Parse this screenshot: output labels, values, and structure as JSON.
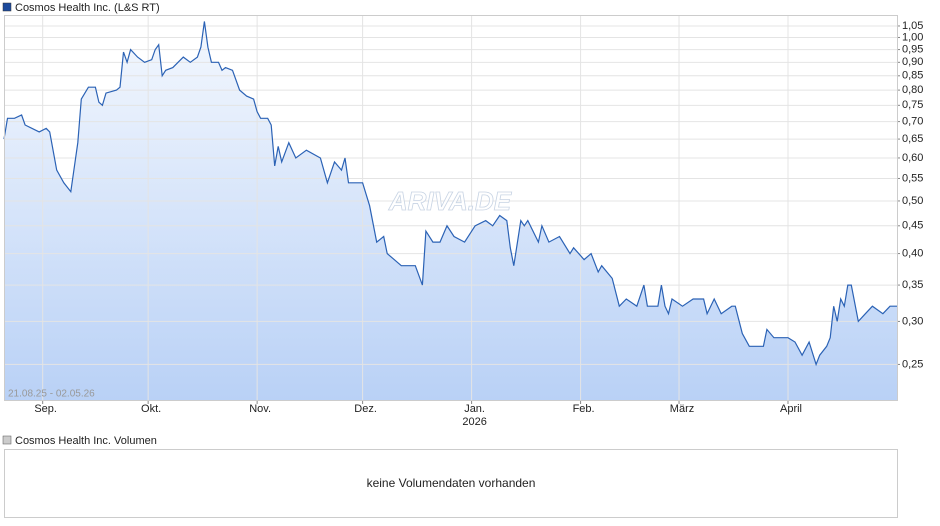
{
  "chart_data": {
    "type": "line",
    "range_label": "21.08.25 - 02.05.26",
    "watermark": "ARIVA.DE",
    "log_scale": true,
    "grid": true,
    "y_axis_side": "right",
    "xlim": [
      "2025-08-21",
      "2026-05-02"
    ],
    "xticks": [
      {
        "value": "2025-09-01",
        "label": "Sep."
      },
      {
        "value": "2025-10-01",
        "label": "Okt."
      },
      {
        "value": "2025-11-01",
        "label": "Nov."
      },
      {
        "value": "2025-12-01",
        "label": "Dez."
      },
      {
        "value": "2026-01-01",
        "label": "Jan."
      },
      {
        "value": "2026-02-01",
        "label": "Feb."
      },
      {
        "value": "2026-03-01",
        "label": "März"
      },
      {
        "value": "2026-04-01",
        "label": "April"
      }
    ],
    "year_label": {
      "value": "2026-01-01",
      "label": "2026"
    },
    "ylim": [
      0.215,
      1.1
    ],
    "yticks": [
      {
        "value": 0.25,
        "label": "0,25"
      },
      {
        "value": 0.3,
        "label": "0,30"
      },
      {
        "value": 0.35,
        "label": "0,35"
      },
      {
        "value": 0.4,
        "label": "0,40"
      },
      {
        "value": 0.45,
        "label": "0,45"
      },
      {
        "value": 0.5,
        "label": "0,50"
      },
      {
        "value": 0.55,
        "label": "0,55"
      },
      {
        "value": 0.6,
        "label": "0,60"
      },
      {
        "value": 0.65,
        "label": "0,65"
      },
      {
        "value": 0.7,
        "label": "0,70"
      },
      {
        "value": 0.75,
        "label": "0,75"
      },
      {
        "value": 0.8,
        "label": "0,80"
      },
      {
        "value": 0.85,
        "label": "0,85"
      },
      {
        "value": 0.9,
        "label": "0,90"
      },
      {
        "value": 0.95,
        "label": "0,95"
      },
      {
        "value": 1.0,
        "label": "1,00"
      },
      {
        "value": 1.05,
        "label": "1,05"
      }
    ],
    "x": [
      "2025-08-21",
      "2025-08-22",
      "2025-08-24",
      "2025-08-26",
      "2025-08-27",
      "2025-08-31",
      "2025-09-02",
      "2025-09-03",
      "2025-09-05",
      "2025-09-07",
      "2025-09-09",
      "2025-09-11",
      "2025-09-12",
      "2025-09-14",
      "2025-09-16",
      "2025-09-17",
      "2025-09-18",
      "2025-09-19",
      "2025-09-22",
      "2025-09-23",
      "2025-09-24",
      "2025-09-25",
      "2025-09-26",
      "2025-09-28",
      "2025-09-30",
      "2025-10-02",
      "2025-10-03",
      "2025-10-04",
      "2025-10-05",
      "2025-10-06",
      "2025-10-08",
      "2025-10-11",
      "2025-10-13",
      "2025-10-15",
      "2025-10-16",
      "2025-10-17",
      "2025-10-18",
      "2025-10-19",
      "2025-10-21",
      "2025-10-22",
      "2025-10-23",
      "2025-10-25",
      "2025-10-27",
      "2025-10-29",
      "2025-10-31",
      "2025-11-01",
      "2025-11-02",
      "2025-11-04",
      "2025-11-05",
      "2025-11-06",
      "2025-11-07",
      "2025-11-08",
      "2025-11-10",
      "2025-11-12",
      "2025-11-15",
      "2025-11-19",
      "2025-11-21",
      "2025-11-23",
      "2025-11-25",
      "2025-11-26",
      "2025-11-27",
      "2025-12-01",
      "2025-12-03",
      "2025-12-05",
      "2025-12-07",
      "2025-12-08",
      "2025-12-10",
      "2025-12-12",
      "2025-12-16",
      "2025-12-18",
      "2025-12-19",
      "2025-12-21",
      "2025-12-23",
      "2025-12-25",
      "2025-12-27",
      "2025-12-30",
      "2026-01-02",
      "2026-01-05",
      "2026-01-07",
      "2026-01-09",
      "2026-01-11",
      "2026-01-12",
      "2026-01-13",
      "2026-01-15",
      "2026-01-16",
      "2026-01-17",
      "2026-01-20",
      "2026-01-21",
      "2026-01-23",
      "2026-01-26",
      "2026-01-29",
      "2026-01-30",
      "2026-02-02",
      "2026-02-04",
      "2026-02-06",
      "2026-02-07",
      "2026-02-10",
      "2026-02-12",
      "2026-02-14",
      "2026-02-17",
      "2026-02-19",
      "2026-02-20",
      "2026-02-23",
      "2026-02-24",
      "2026-02-25",
      "2026-02-26",
      "2026-02-27",
      "2026-03-02",
      "2026-03-05",
      "2026-03-08",
      "2026-03-09",
      "2026-03-11",
      "2026-03-13",
      "2026-03-16",
      "2026-03-17",
      "2026-03-19",
      "2026-03-21",
      "2026-03-23",
      "2026-03-25",
      "2026-03-26",
      "2026-03-28",
      "2026-04-01",
      "2026-04-03",
      "2026-04-05",
      "2026-04-07",
      "2026-04-09",
      "2026-04-10",
      "2026-04-12",
      "2026-04-13",
      "2026-04-14",
      "2026-04-15",
      "2026-04-16",
      "2026-04-17",
      "2026-04-18",
      "2026-04-19",
      "2026-04-21",
      "2026-04-23",
      "2026-04-25",
      "2026-04-28",
      "2026-04-30",
      "2026-05-02"
    ],
    "series": [
      {
        "name": "Cosmos Health Inc. (L&S RT)",
        "color": "#2b62b5",
        "values": [
          0.65,
          0.71,
          0.71,
          0.72,
          0.69,
          0.67,
          0.68,
          0.67,
          0.57,
          0.54,
          0.52,
          0.64,
          0.77,
          0.81,
          0.81,
          0.76,
          0.75,
          0.79,
          0.8,
          0.81,
          0.94,
          0.9,
          0.95,
          0.92,
          0.9,
          0.91,
          0.95,
          0.97,
          0.85,
          0.87,
          0.88,
          0.92,
          0.9,
          0.92,
          0.96,
          1.07,
          0.96,
          0.9,
          0.9,
          0.87,
          0.88,
          0.87,
          0.8,
          0.78,
          0.77,
          0.73,
          0.71,
          0.71,
          0.69,
          0.58,
          0.63,
          0.59,
          0.64,
          0.6,
          0.62,
          0.6,
          0.54,
          0.59,
          0.57,
          0.6,
          0.54,
          0.54,
          0.49,
          0.42,
          0.43,
          0.4,
          0.39,
          0.38,
          0.38,
          0.35,
          0.44,
          0.42,
          0.42,
          0.45,
          0.43,
          0.42,
          0.45,
          0.46,
          0.45,
          0.47,
          0.46,
          0.41,
          0.38,
          0.46,
          0.45,
          0.46,
          0.42,
          0.45,
          0.42,
          0.43,
          0.4,
          0.41,
          0.39,
          0.4,
          0.37,
          0.38,
          0.36,
          0.32,
          0.33,
          0.32,
          0.35,
          0.32,
          0.32,
          0.35,
          0.32,
          0.31,
          0.33,
          0.32,
          0.33,
          0.33,
          0.31,
          0.33,
          0.31,
          0.32,
          0.32,
          0.285,
          0.27,
          0.27,
          0.27,
          0.29,
          0.28,
          0.28,
          0.275,
          0.26,
          0.275,
          0.25,
          0.26,
          0.27,
          0.28,
          0.32,
          0.3,
          0.33,
          0.32,
          0.35,
          0.35,
          0.3,
          0.31,
          0.32,
          0.31,
          0.32,
          0.32
        ]
      }
    ]
  },
  "volume_panel": {
    "title": "Cosmos Health Inc. Volumen",
    "message": "keine Volumendaten vorhanden"
  }
}
